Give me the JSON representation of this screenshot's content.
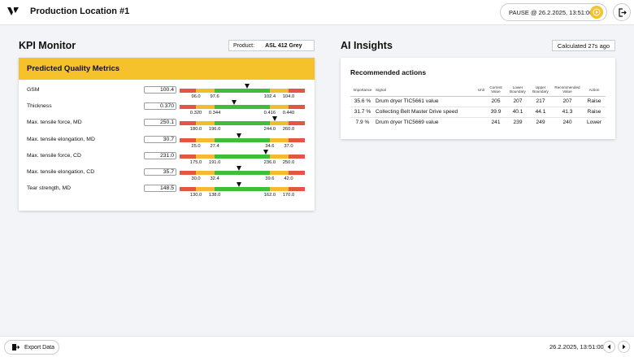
{
  "header": {
    "title": "Production Location #1",
    "pause_label": "PAUSE @ 26.2.2025, 13:51:00",
    "pause_icon": "play-circle-icon",
    "logout_icon": "logout-icon"
  },
  "kpi": {
    "title": "KPI Monitor",
    "product_label": "Product:",
    "product_value": "ASL 412 Grey",
    "card_title": "Predicted Quality Metrics",
    "metrics": [
      {
        "label": "GSM",
        "value": "100.4",
        "ticks": [
          "96.0",
          "97.6",
          "102.4",
          "104.0"
        ],
        "level": 0.54
      },
      {
        "label": "Thickness",
        "value": "0.370",
        "ticks": [
          "0.320",
          "0.344",
          "0.416",
          "0.440"
        ],
        "level": 0.44
      },
      {
        "label": "Max. tensile force, MD",
        "value": "250.1",
        "ticks": [
          "180.0",
          "196.0",
          "244.0",
          "260.0"
        ],
        "level": 0.76
      },
      {
        "label": "Max. tensile elongation, MD",
        "value": "30.7",
        "ticks": [
          "25.0",
          "27.4",
          "34.6",
          "37.0"
        ],
        "level": 0.48
      },
      {
        "label": "Max. tensile force, CD",
        "value": "231.0",
        "ticks": [
          "175.0",
          "191.0",
          "236.0",
          "250.0"
        ],
        "level": 0.69
      },
      {
        "label": "Max. tensile elongation, CD",
        "value": "35.7",
        "ticks": [
          "30.0",
          "32.4",
          "39.6",
          "42.0"
        ],
        "level": 0.48
      },
      {
        "label": "Tear strength, MD",
        "value": "148.5",
        "ticks": [
          "130.0",
          "138.0",
          "162.0",
          "170.0"
        ],
        "level": 0.48
      }
    ],
    "colors": {
      "red": "#e45544",
      "yellow": "#f2bc31",
      "green": "#3fbd3b",
      "accent": "#f6c22b"
    }
  },
  "ai": {
    "title": "AI Insights",
    "calculated": "Calculated 27s ago",
    "card_title": "Recommended actions",
    "columns": [
      "Importance",
      "Signal",
      "Unit",
      "Current Value",
      "Lower Boundary",
      "Upper Boundary",
      "Recommended Value",
      "Action"
    ],
    "rows": [
      [
        "35.6 %",
        "Drum dryer TIC5661 value",
        "",
        "205",
        "207",
        "217",
        "207",
        "Raise"
      ],
      [
        "31.7 %",
        "Collecting Belt Master Drive speed",
        "",
        "39.9",
        "40.1",
        "44.1",
        "41.3",
        "Raise"
      ],
      [
        "7.9 %",
        "Drum dryer TIC5669 value",
        "",
        "241",
        "239",
        "249",
        "240",
        "Lower"
      ]
    ]
  },
  "footer": {
    "export_label": "Export Data",
    "export_icon": "export-icon",
    "timestamp": "26.2.2025, 13:51:00",
    "prev_icon": "chevron-left-icon",
    "next_icon": "chevron-right-icon"
  }
}
